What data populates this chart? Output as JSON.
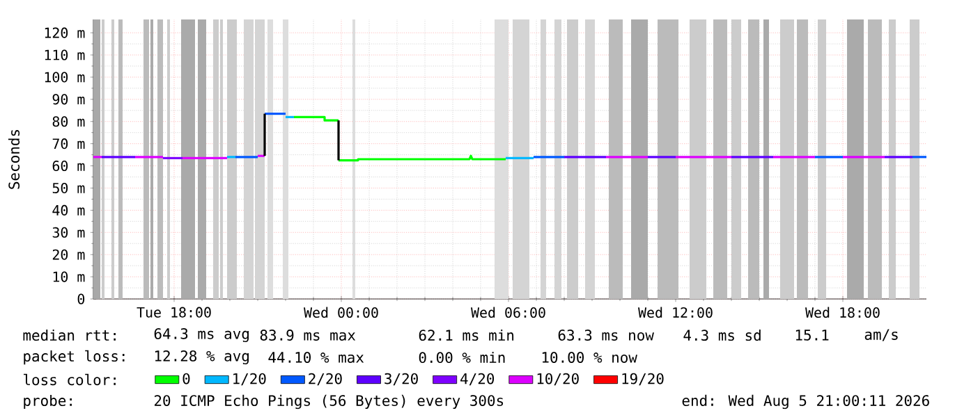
{
  "chart_data": {
    "type": "line",
    "ylabel": "Seconds",
    "legend_title": "loss color:",
    "legend": "bottom",
    "grid": true,
    "line_style": "solid",
    "xlim": [
      "2026-08-04T15:06",
      "2026-08-05T21:00"
    ],
    "ylim": [
      0,
      126
    ],
    "xticks": [
      {
        "value": "2026-08-04T18:00",
        "label": "Tue 18:00"
      },
      {
        "value": "2026-08-05T00:00",
        "label": "Wed 00:00"
      },
      {
        "value": "2026-08-05T06:00",
        "label": "Wed 06:00"
      },
      {
        "value": "2026-08-05T12:00",
        "label": "Wed 12:00"
      },
      {
        "value": "2026-08-05T18:00",
        "label": "Wed 18:00"
      }
    ],
    "yticks": [
      {
        "value": 0,
        "label": "0"
      },
      {
        "value": 10,
        "label": "10 m"
      },
      {
        "value": 20,
        "label": "20 m"
      },
      {
        "value": 30,
        "label": "30 m"
      },
      {
        "value": 40,
        "label": "40 m"
      },
      {
        "value": 50,
        "label": "50 m"
      },
      {
        "value": 60,
        "label": "60 m"
      },
      {
        "value": 70,
        "label": "70 m"
      },
      {
        "value": 80,
        "label": "80 m"
      },
      {
        "value": 90,
        "label": "90 m"
      },
      {
        "value": 100,
        "label": "100 m"
      },
      {
        "value": 110,
        "label": "110 m"
      },
      {
        "value": 120,
        "label": "120 m"
      }
    ],
    "bands": [
      {
        "axis": "x",
        "from": "2026-08-04T15:06",
        "to": "2026-08-04T15:21",
        "color": "#a8a8a8"
      },
      {
        "axis": "x",
        "from": "2026-08-04T15:24",
        "to": "2026-08-04T15:30",
        "color": "#cccccc"
      },
      {
        "axis": "x",
        "from": "2026-08-04T15:45",
        "to": "2026-08-04T15:51",
        "color": "#cccccc"
      },
      {
        "axis": "x",
        "from": "2026-08-04T16:00",
        "to": "2026-08-04T16:09",
        "color": "#bbbbbb"
      },
      {
        "axis": "x",
        "from": "2026-08-04T16:54",
        "to": "2026-08-04T17:06",
        "color": "#bbbbbb"
      },
      {
        "axis": "x",
        "from": "2026-08-04T17:09",
        "to": "2026-08-04T17:15",
        "color": "#aaaaaa"
      },
      {
        "axis": "x",
        "from": "2026-08-04T17:24",
        "to": "2026-08-04T17:36",
        "color": "#bbbbbb"
      },
      {
        "axis": "x",
        "from": "2026-08-04T17:45",
        "to": "2026-08-04T17:51",
        "color": "#cccccc"
      },
      {
        "axis": "x",
        "from": "2026-08-04T18:15",
        "to": "2026-08-04T18:45",
        "color": "#aaaaaa"
      },
      {
        "axis": "x",
        "from": "2026-08-04T18:51",
        "to": "2026-08-04T19:09",
        "color": "#aaaaaa"
      },
      {
        "axis": "x",
        "from": "2026-08-04T19:24",
        "to": "2026-08-04T19:36",
        "color": "#cccccc"
      },
      {
        "axis": "x",
        "from": "2026-08-04T19:39",
        "to": "2026-08-04T19:45",
        "color": "#cccccc"
      },
      {
        "axis": "x",
        "from": "2026-08-04T19:54",
        "to": "2026-08-04T20:15",
        "color": "#cccccc"
      },
      {
        "axis": "x",
        "from": "2026-08-04T20:30",
        "to": "2026-08-04T20:51",
        "color": "#d4d4d4"
      },
      {
        "axis": "x",
        "from": "2026-08-04T20:54",
        "to": "2026-08-04T21:15",
        "color": "#d4d4d4"
      },
      {
        "axis": "x",
        "from": "2026-08-04T21:21",
        "to": "2026-08-04T21:33",
        "color": "#dddddd"
      },
      {
        "axis": "x",
        "from": "2026-08-04T21:54",
        "to": "2026-08-04T22:06",
        "color": "#dddddd"
      },
      {
        "axis": "x",
        "from": "2026-08-05T00:24",
        "to": "2026-08-05T00:30",
        "color": "#dddddd"
      },
      {
        "axis": "x",
        "from": "2026-08-05T05:30",
        "to": "2026-08-05T06:00",
        "color": "#dddddd"
      },
      {
        "axis": "x",
        "from": "2026-08-05T06:09",
        "to": "2026-08-05T06:45",
        "color": "#d4d4d4"
      },
      {
        "axis": "x",
        "from": "2026-08-05T07:09",
        "to": "2026-08-05T07:21",
        "color": "#d4d4d4"
      },
      {
        "axis": "x",
        "from": "2026-08-05T07:39",
        "to": "2026-08-05T07:54",
        "color": "#d4d4d4"
      },
      {
        "axis": "x",
        "from": "2026-08-05T08:06",
        "to": "2026-08-05T08:30",
        "color": "#cccccc"
      },
      {
        "axis": "x",
        "from": "2026-08-05T08:45",
        "to": "2026-08-05T09:06",
        "color": "#d4d4d4"
      },
      {
        "axis": "x",
        "from": "2026-08-05T09:36",
        "to": "2026-08-05T10:06",
        "color": "#bbbbbb"
      },
      {
        "axis": "x",
        "from": "2026-08-05T10:24",
        "to": "2026-08-05T11:00",
        "color": "#aaaaaa"
      },
      {
        "axis": "x",
        "from": "2026-08-05T11:21",
        "to": "2026-08-05T12:06",
        "color": "#bbbbbb"
      },
      {
        "axis": "x",
        "from": "2026-08-05T12:30",
        "to": "2026-08-05T13:06",
        "color": "#cccccc"
      },
      {
        "axis": "x",
        "from": "2026-08-05T13:21",
        "to": "2026-08-05T13:51",
        "color": "#bbbbbb"
      },
      {
        "axis": "x",
        "from": "2026-08-05T14:00",
        "to": "2026-08-05T14:21",
        "color": "#cccccc"
      },
      {
        "axis": "x",
        "from": "2026-08-05T14:36",
        "to": "2026-08-05T15:00",
        "color": "#bbbbbb"
      },
      {
        "axis": "x",
        "from": "2026-08-05T15:09",
        "to": "2026-08-05T15:21",
        "color": "#aaaaaa"
      },
      {
        "axis": "x",
        "from": "2026-08-05T15:45",
        "to": "2026-08-05T16:15",
        "color": "#cccccc"
      },
      {
        "axis": "x",
        "from": "2026-08-05T16:21",
        "to": "2026-08-05T16:45",
        "color": "#bbbbbb"
      },
      {
        "axis": "x",
        "from": "2026-08-05T17:06",
        "to": "2026-08-05T17:24",
        "color": "#cccccc"
      },
      {
        "axis": "x",
        "from": "2026-08-05T18:09",
        "to": "2026-08-05T18:45",
        "color": "#aaaaaa"
      },
      {
        "axis": "x",
        "from": "2026-08-05T18:54",
        "to": "2026-08-05T19:24",
        "color": "#bbbbbb"
      },
      {
        "axis": "x",
        "from": "2026-08-05T19:39",
        "to": "2026-08-05T19:54",
        "color": "#cccccc"
      },
      {
        "axis": "x",
        "from": "2026-08-05T20:24",
        "to": "2026-08-05T20:45",
        "color": "#cccccc"
      }
    ],
    "series": [
      {
        "name": "0",
        "color": "#00ff00",
        "x": [
          "2026-08-04T22:18",
          "2026-08-04T23:24",
          "2026-08-04T23:24",
          "2026-08-04T23:54"
        ],
        "values": [
          82,
          82,
          80.5,
          80.5
        ]
      },
      {
        "name": "1/20",
        "color": "#00b8ff",
        "x": [
          "2026-08-04T19:54",
          "2026-08-04T20:12"
        ],
        "values": [
          64,
          64
        ]
      },
      {
        "name": "2/20",
        "color": "#0059ff",
        "x": [
          "2026-08-04T20:12",
          "2026-08-04T21:00"
        ],
        "values": [
          64,
          64
        ]
      },
      {
        "name": "3/20",
        "color": "#5e00ff",
        "x": [
          "2026-08-04T15:24",
          "2026-08-04T16:36"
        ],
        "values": [
          64,
          64
        ]
      },
      {
        "name": "4/20",
        "color": "#7e00ff",
        "x": [
          "2026-08-04T17:36",
          "2026-08-04T18:18"
        ],
        "values": [
          63.5,
          63.5
        ]
      },
      {
        "name": "10/20",
        "color": "#dd00ff",
        "x": [
          "2026-08-04T15:06",
          "2026-08-04T15:24"
        ],
        "values": [
          64,
          64
        ]
      },
      {
        "name": "19/20",
        "color": "#ff0000"
      },
      {
        "color": "#dd00ff",
        "x": [
          "2026-08-04T16:36",
          "2026-08-04T17:36"
        ],
        "values": [
          64,
          64
        ]
      },
      {
        "color": "#dd00ff",
        "x": [
          "2026-08-04T18:18",
          "2026-08-04T19:54"
        ],
        "values": [
          63.5,
          63.5
        ]
      },
      {
        "color": "#dd00ff",
        "x": [
          "2026-08-04T21:00",
          "2026-08-04T21:15"
        ],
        "values": [
          64.5,
          64.5
        ]
      },
      {
        "color": "#0059ff",
        "x": [
          "2026-08-04T21:15",
          "2026-08-04T22:00"
        ],
        "values": [
          83.5,
          83.5
        ]
      },
      {
        "color": "#00b8ff",
        "x": [
          "2026-08-04T22:00",
          "2026-08-04T22:18"
        ],
        "values": [
          82,
          82
        ]
      },
      {
        "color": "#00ff00",
        "x": [
          "2026-08-04T23:54",
          "2026-08-05T00:36",
          "2026-08-05T00:36",
          "2026-08-05T04:36",
          "2026-08-05T04:39",
          "2026-08-05T04:42",
          "2026-08-05T05:54"
        ],
        "values": [
          62.5,
          62.5,
          63,
          63,
          64.5,
          63,
          63
        ]
      },
      {
        "color": "#00b8ff",
        "x": [
          "2026-08-05T05:54",
          "2026-08-05T06:54"
        ],
        "values": [
          63.5,
          63.5
        ]
      },
      {
        "color": "#0059ff",
        "x": [
          "2026-08-05T06:54",
          "2026-08-05T08:00"
        ],
        "values": [
          64,
          64
        ]
      },
      {
        "color": "#5e00ff",
        "x": [
          "2026-08-05T08:00",
          "2026-08-05T09:30"
        ],
        "values": [
          64,
          64
        ]
      },
      {
        "color": "#dd00ff",
        "x": [
          "2026-08-05T09:30",
          "2026-08-05T11:00"
        ],
        "values": [
          64,
          64
        ]
      },
      {
        "color": "#5e00ff",
        "x": [
          "2026-08-05T11:00",
          "2026-08-05T12:00"
        ],
        "values": [
          64,
          64
        ]
      },
      {
        "color": "#dd00ff",
        "x": [
          "2026-08-05T12:00",
          "2026-08-05T14:00"
        ],
        "values": [
          64,
          64
        ]
      },
      {
        "color": "#5e00ff",
        "x": [
          "2026-08-05T14:00",
          "2026-08-05T15:30"
        ],
        "values": [
          64,
          64
        ]
      },
      {
        "color": "#dd00ff",
        "x": [
          "2026-08-05T15:30",
          "2026-08-05T17:00"
        ],
        "values": [
          64,
          64
        ]
      },
      {
        "color": "#0059ff",
        "x": [
          "2026-08-05T17:00",
          "2026-08-05T18:00"
        ],
        "values": [
          64,
          64
        ]
      },
      {
        "color": "#dd00ff",
        "x": [
          "2026-08-05T18:00",
          "2026-08-05T19:30"
        ],
        "values": [
          64,
          64
        ]
      },
      {
        "color": "#5e00ff",
        "x": [
          "2026-08-05T19:30",
          "2026-08-05T20:30"
        ],
        "values": [
          64,
          64
        ]
      },
      {
        "color": "#0059ff",
        "x": [
          "2026-08-05T20:30",
          "2026-08-05T21:00"
        ],
        "values": [
          64,
          64
        ]
      },
      {
        "color": "#000000",
        "x": [
          "2026-08-04T21:15",
          "2026-08-04T21:15"
        ],
        "values": [
          64.5,
          83.5
        ]
      },
      {
        "color": "#000000",
        "x": [
          "2026-08-04T23:54",
          "2026-08-04T23:54"
        ],
        "values": [
          80.5,
          62.5
        ]
      }
    ],
    "annotations": [
      "median rtt:",
      "64.3 ms avg",
      "83.9 ms max",
      "62.1 ms min",
      "63.3 ms now",
      "4.3 ms sd",
      "15.1",
      "am/s",
      "packet loss:",
      "12.28 % avg",
      "44.10 % max",
      "0.00 % min",
      "10.00 % now",
      "probe:",
      "20 ICMP Echo Pings (56 Bytes) every 300s",
      "end: Wed Aug 5 21:00:11 2026"
    ]
  }
}
